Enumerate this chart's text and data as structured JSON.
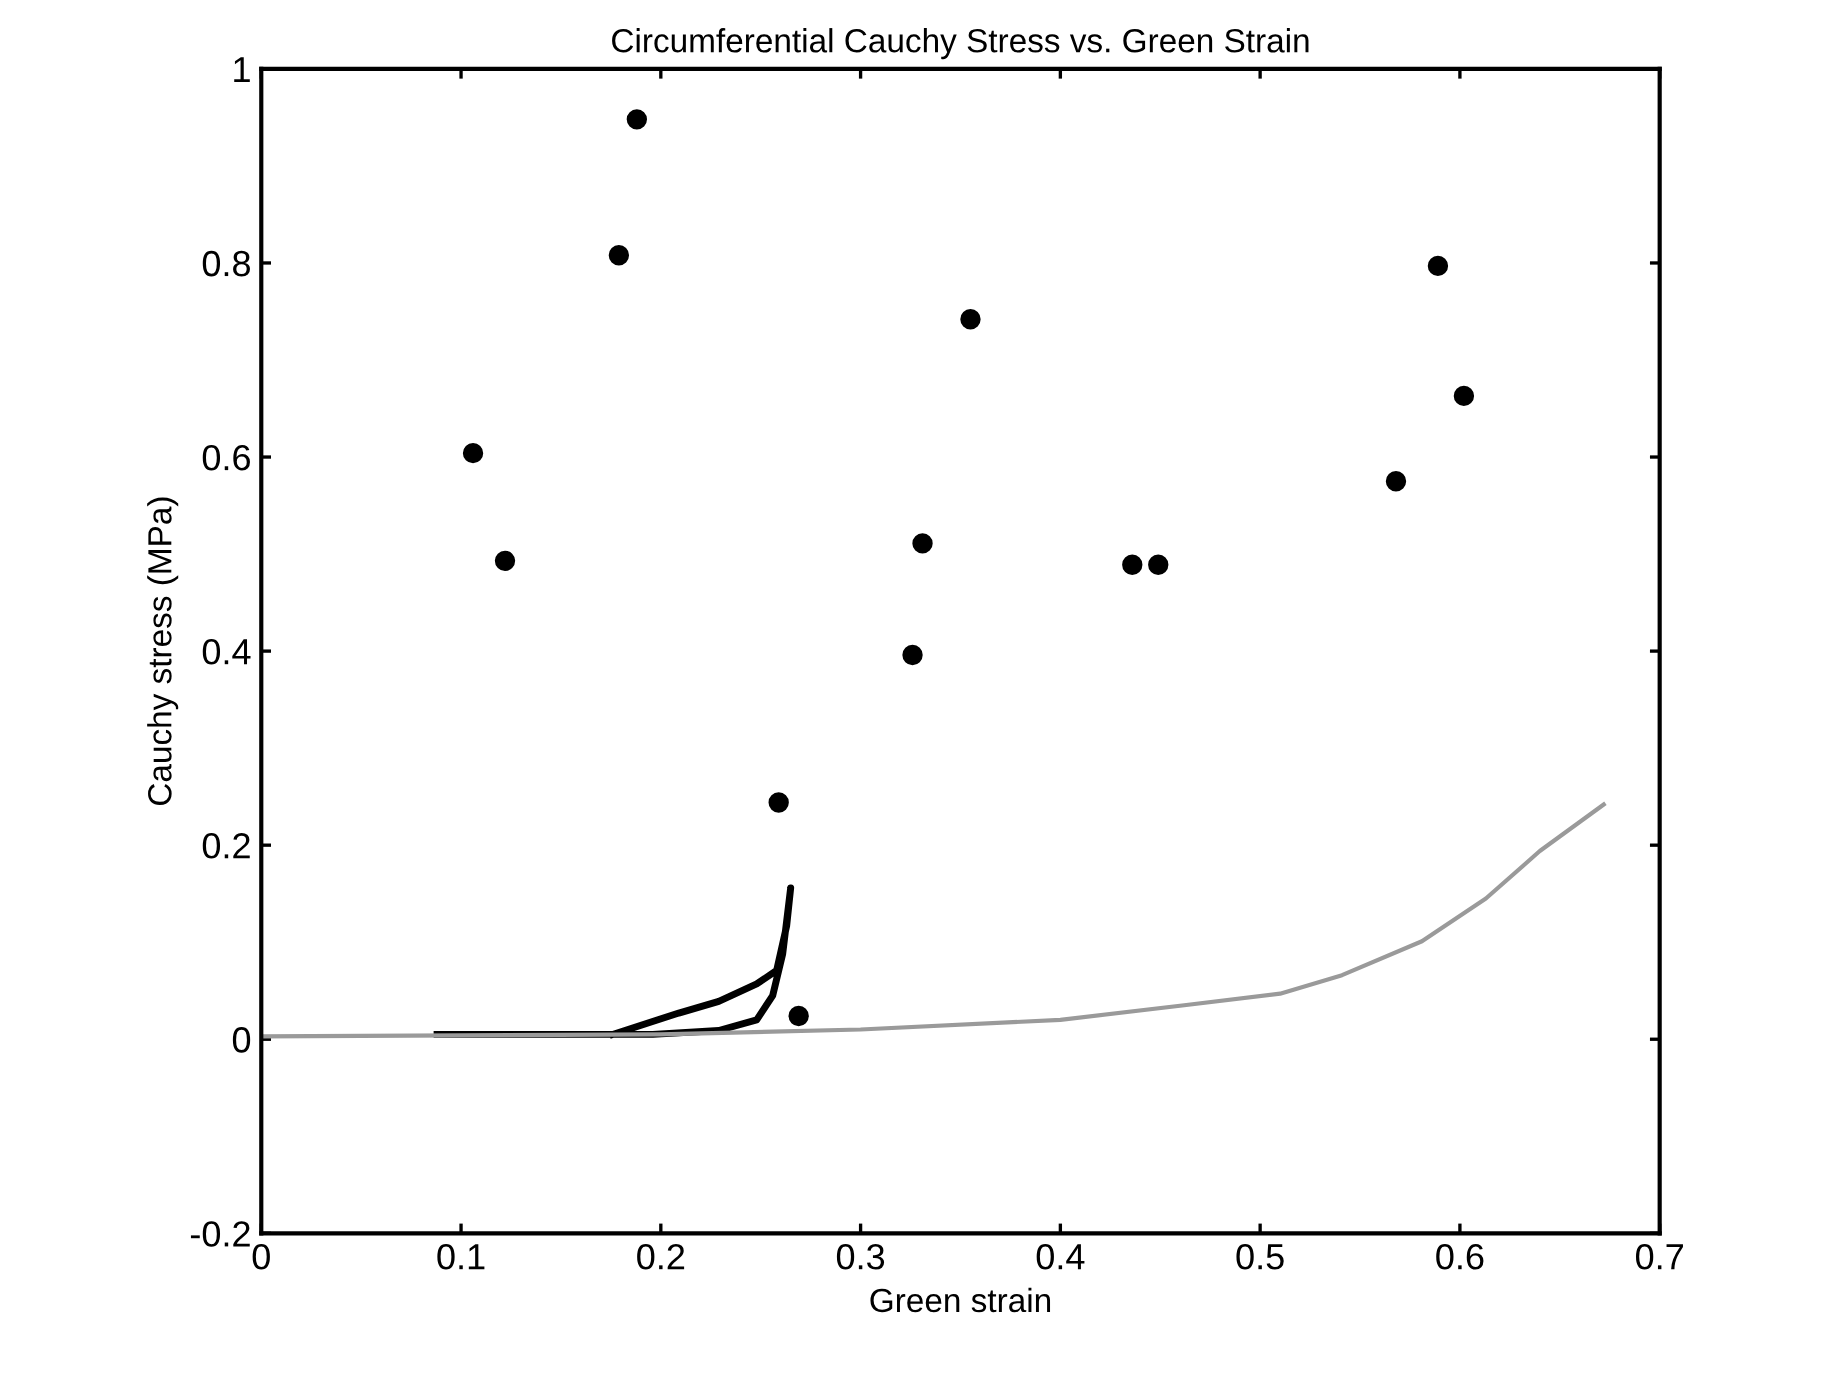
{
  "chart_data": {
    "type": "scatter",
    "title": "Circumferential Cauchy Stress vs. Green Strain",
    "xlabel": "Green strain",
    "ylabel": "Cauchy stress (MPa)",
    "xlim": [
      0,
      0.7
    ],
    "xticks": [
      0,
      0.1,
      0.2,
      0.3,
      0.4,
      0.5,
      0.6,
      0.7
    ],
    "ylim": [
      -0.2,
      1
    ],
    "yticks": [
      -0.2,
      0,
      0.2,
      0.4,
      0.6,
      0.8,
      1
    ],
    "grid": false,
    "legend": false,
    "series": [
      {
        "type": "line",
        "color": "#9a9a9a",
        "marker": "none",
        "line_style": "solid",
        "x": [
          0,
          0.1,
          0.2,
          0.3,
          0.4,
          0.462,
          0.51,
          0.541,
          0.581,
          0.613,
          0.64,
          0.672
        ],
        "values": [
          0.003,
          0.004,
          0.005,
          0.01,
          0.02,
          0.035,
          0.047,
          0.066,
          0.101,
          0.145,
          0.194,
          0.242
        ]
      },
      {
        "type": "line",
        "color": "#000000",
        "marker": "none",
        "line_style": "solid",
        "x": [
          0.088,
          0.176,
          0.196,
          0.229,
          0.248,
          0.256,
          0.261,
          0.265,
          0.263,
          0.258,
          0.248,
          0.229,
          0.209,
          0.176
        ],
        "values": [
          0.005,
          0.005,
          0.005,
          0.009,
          0.02,
          0.045,
          0.088,
          0.156,
          0.117,
          0.071,
          0.057,
          0.039,
          0.027,
          0.005
        ]
      },
      {
        "color": "#000000",
        "marker": "circle",
        "x": [
          0.106,
          0.122,
          0.179,
          0.188,
          0.259,
          0.269,
          0.326,
          0.331,
          0.355,
          0.436,
          0.449,
          0.568,
          0.589,
          0.602
        ],
        "values": [
          0.604,
          0.493,
          0.808,
          0.948,
          0.244,
          0.024,
          0.396,
          0.511,
          0.742,
          0.489,
          0.489,
          0.575,
          0.797,
          0.663
        ]
      }
    ]
  }
}
